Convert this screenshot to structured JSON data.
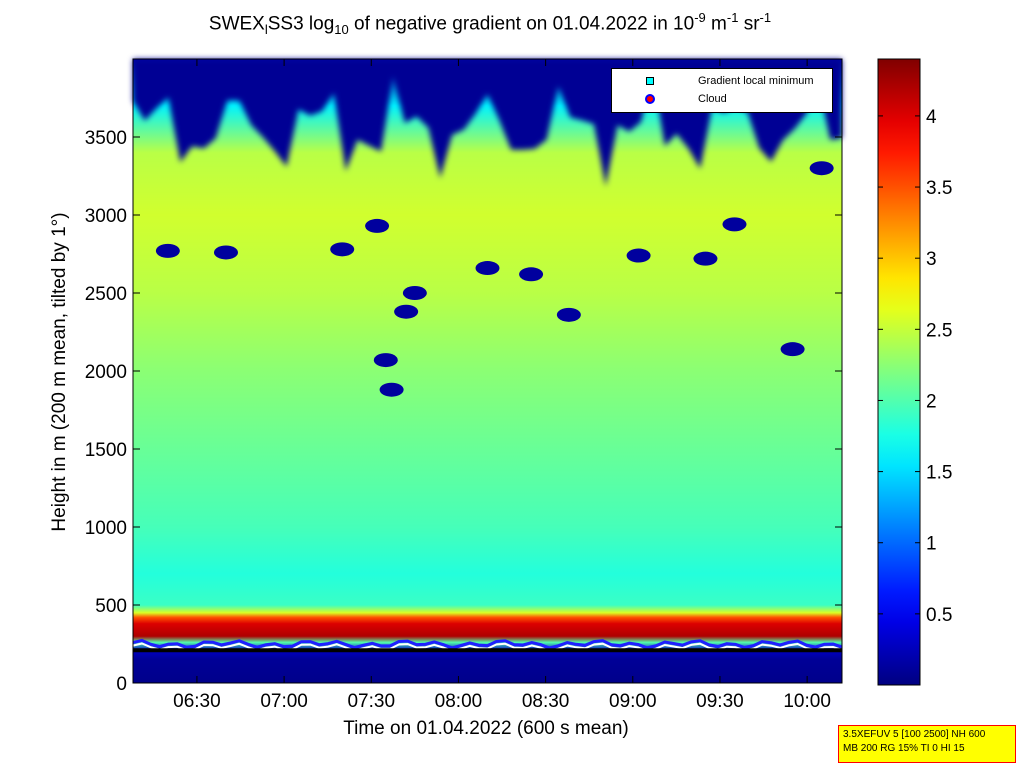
{
  "title": {
    "part1": "SWEX",
    "sub1": "l",
    "part2": "SS3 log",
    "sub2": "10",
    "part3": " of negative gradient on 01.04.2022 in 10",
    "sup1": "-9",
    "part4": " m",
    "sup2": "-1",
    "part5": " sr",
    "sup3": "-1"
  },
  "chart_data": {
    "type": "heatmap",
    "xlabel": "Time on 01.04.2022 (600 s mean)",
    "ylabel": "Height in m (200 m mean, tilted by 1°)",
    "x_tick_labels": [
      "06:30",
      "07:00",
      "07:30",
      "08:00",
      "08:30",
      "09:00",
      "09:30",
      "10:00"
    ],
    "x_range": [
      "06:08",
      "10:12"
    ],
    "y_ticks": [
      0,
      500,
      1000,
      1500,
      2000,
      2500,
      3000,
      3500
    ],
    "y_tick_labels": [
      "0",
      "500",
      "1000",
      "1500",
      "2000",
      "2500",
      "3000",
      "3500"
    ],
    "ylim": [
      0,
      4000
    ],
    "colorbar": {
      "colormap": "jet",
      "range": [
        0,
        4.4
      ],
      "ticks": [
        0.5,
        1,
        1.5,
        2,
        2.5,
        3,
        3.5,
        4
      ],
      "tick_labels": [
        "0.5",
        "1",
        "1.5",
        "2",
        "2.5",
        "3",
        "3.5",
        "4"
      ]
    },
    "legend": {
      "placement": "top-right",
      "entries": [
        {
          "label": "Gradient local minimum",
          "marker": "square",
          "color": "#00ffff"
        },
        {
          "label": "Cloud",
          "marker": "circle",
          "color": "#ff0000"
        }
      ]
    },
    "profile": [
      {
        "height": 0,
        "value": 0.05
      },
      {
        "height": 150,
        "value": 0.1
      },
      {
        "height": 210,
        "value": 0.3
      },
      {
        "height": 260,
        "value": 2.0
      },
      {
        "height": 300,
        "value": 4.2
      },
      {
        "height": 380,
        "value": 4.0
      },
      {
        "height": 420,
        "value": 3.5
      },
      {
        "height": 450,
        "value": 2.6
      },
      {
        "height": 500,
        "value": 1.9
      },
      {
        "height": 700,
        "value": 1.8
      },
      {
        "height": 1000,
        "value": 1.95
      },
      {
        "height": 1500,
        "value": 2.1
      },
      {
        "height": 2000,
        "value": 2.25
      },
      {
        "height": 2500,
        "value": 2.45
      },
      {
        "height": 3000,
        "value": 2.55
      },
      {
        "height": 3400,
        "value": 2.45
      },
      {
        "height": 3700,
        "value": 1.6
      },
      {
        "height": 4000,
        "value": 0.2
      }
    ],
    "low_value_patches": [
      {
        "t": "06:20",
        "height": 2770
      },
      {
        "t": "06:40",
        "height": 2760
      },
      {
        "t": "07:20",
        "height": 2780
      },
      {
        "t": "07:32",
        "height": 2930
      },
      {
        "t": "07:35",
        "height": 2070
      },
      {
        "t": "07:37",
        "height": 1880
      },
      {
        "t": "07:45",
        "height": 2500
      },
      {
        "t": "07:42",
        "height": 2380
      },
      {
        "t": "08:10",
        "height": 2660
      },
      {
        "t": "08:25",
        "height": 2620
      },
      {
        "t": "08:38",
        "height": 2360
      },
      {
        "t": "09:02",
        "height": 2740
      },
      {
        "t": "09:25",
        "height": 2720
      },
      {
        "t": "09:35",
        "height": 2940
      },
      {
        "t": "09:55",
        "height": 2140
      },
      {
        "t": "10:05",
        "height": 3300
      }
    ],
    "cloud_height_m": 230
  },
  "info_box": {
    "line1": "3.5XEFUV 5 [100 2500] NH 600",
    "line2": "MB 200 RG 15% TI 0 HI 15"
  }
}
